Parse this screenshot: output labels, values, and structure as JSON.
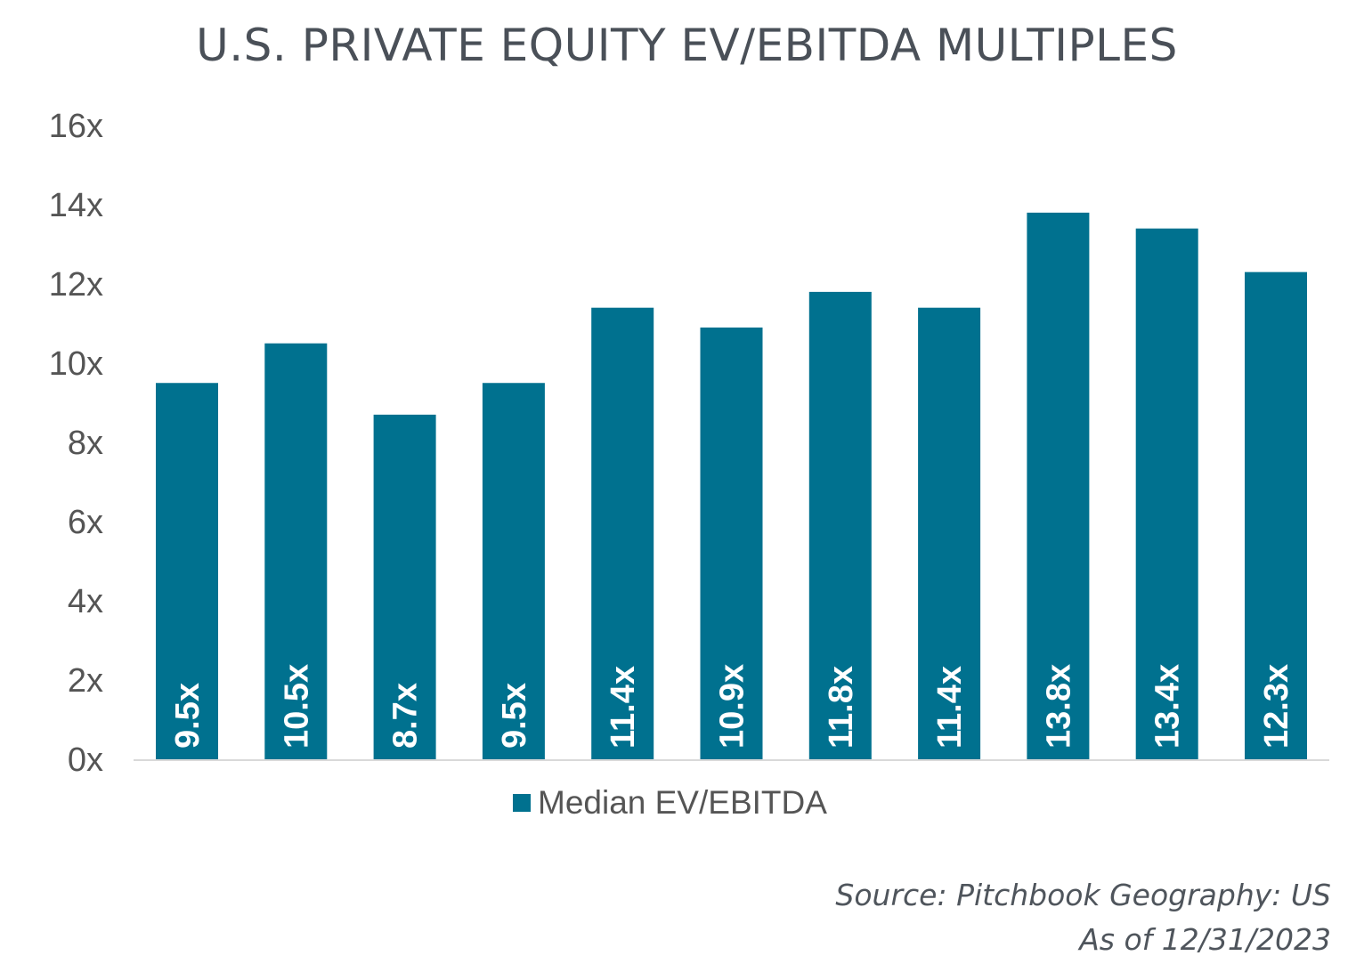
{
  "chart_data": {
    "type": "bar",
    "title": "U.S. PRIVATE EQUITY EV/EBITDA MULTIPLES",
    "categories": [
      "",
      "",
      "",
      "",
      "",
      "",
      "",
      "",
      "",
      "",
      ""
    ],
    "series": [
      {
        "name": "Median EV/EBITDA",
        "values": [
          9.5,
          10.5,
          8.7,
          9.5,
          11.4,
          10.9,
          11.8,
          11.4,
          13.8,
          13.4,
          12.3
        ],
        "labels": [
          "9.5x",
          "10.5x",
          "8.7x",
          "9.5x",
          "11.4x",
          "10.9x",
          "11.8x",
          "11.4x",
          "13.8x",
          "13.4x",
          "12.3x"
        ],
        "color": "#00718f"
      }
    ],
    "y_ticks": [
      0,
      2,
      4,
      6,
      8,
      10,
      12,
      14,
      16
    ],
    "y_tick_labels": [
      "0x",
      "2x",
      "4x",
      "6x",
      "8x",
      "10x",
      "12x",
      "14x",
      "16x"
    ],
    "ylim": [
      0,
      16
    ],
    "grid": false,
    "legend_position": "bottom"
  },
  "source": {
    "line1": "Source: Pitchbook Geography: US",
    "line2": "As of 12/31/2023"
  },
  "colors": {
    "bar": "#00718f",
    "axis_text": "#555555",
    "title": "#4a5058",
    "axis_line": "#d9d9d9"
  }
}
